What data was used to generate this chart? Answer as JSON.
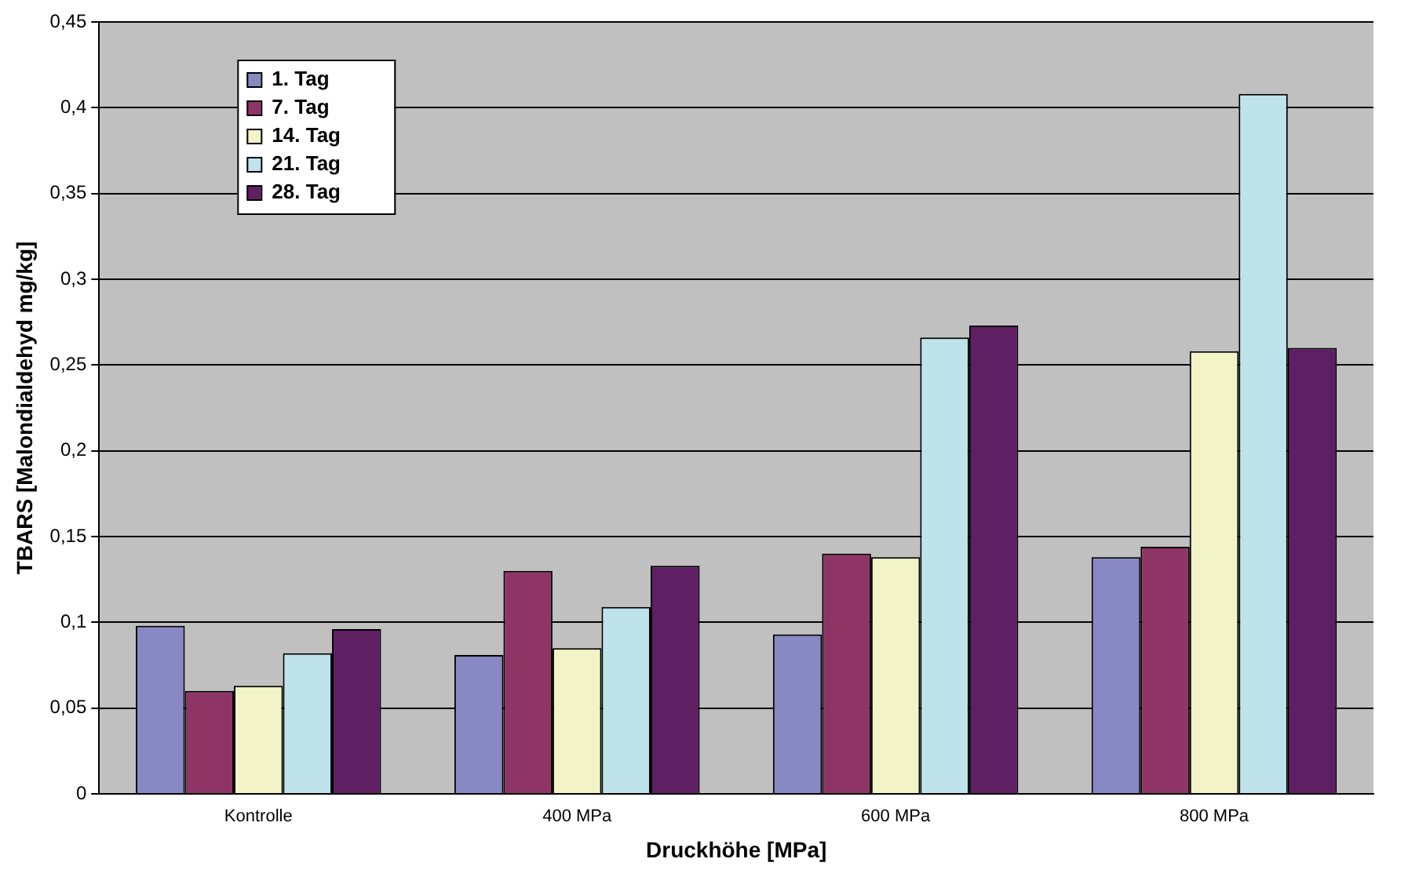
{
  "chart_data": {
    "type": "bar",
    "xlabel": "Druckhöhe [MPa]",
    "ylabel": "TBARS [Malondialdehyd mg/kg]",
    "categories": [
      "Kontrolle",
      "400 MPa",
      "600 MPa",
      "800 MPa"
    ],
    "series": [
      {
        "name": "1. Tag",
        "color": "#8888c4",
        "values": [
          0.098,
          0.081,
          0.093,
          0.138
        ]
      },
      {
        "name": "7. Tag",
        "color": "#8f3566",
        "values": [
          0.06,
          0.13,
          0.14,
          0.144
        ]
      },
      {
        "name": "14. Tag",
        "color": "#f3f3c8",
        "values": [
          0.063,
          0.085,
          0.138,
          0.258
        ]
      },
      {
        "name": "21. Tag",
        "color": "#bfe3eb",
        "values": [
          0.082,
          0.109,
          0.266,
          0.408
        ]
      },
      {
        "name": "28. Tag",
        "color": "#5e1f63",
        "values": [
          0.096,
          0.133,
          0.273,
          0.26
        ]
      }
    ],
    "ylim": [
      0,
      0.45
    ],
    "yticks": [
      {
        "value": 0,
        "label": "0"
      },
      {
        "value": 0.05,
        "label": "0,05"
      },
      {
        "value": 0.1,
        "label": "0,1"
      },
      {
        "value": 0.15,
        "label": "0,15"
      },
      {
        "value": 0.2,
        "label": "0,2"
      },
      {
        "value": 0.25,
        "label": "0,25"
      },
      {
        "value": 0.3,
        "label": "0,3"
      },
      {
        "value": 0.35,
        "label": "0,35"
      },
      {
        "value": 0.4,
        "label": "0,4"
      },
      {
        "value": 0.45,
        "label": "0,45"
      }
    ],
    "grid": "y",
    "legend": "top left"
  }
}
